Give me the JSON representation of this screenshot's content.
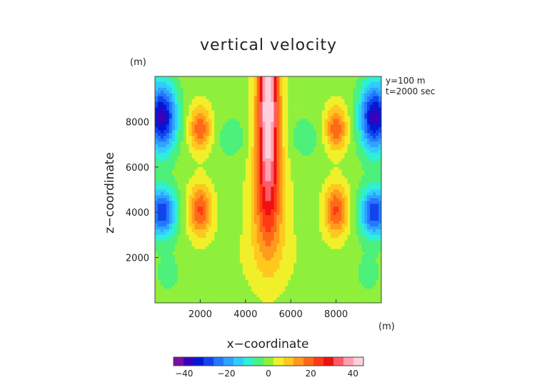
{
  "chart_data": {
    "type": "heatmap",
    "title": "vertical velocity",
    "xlabel": "x−coordinate",
    "ylabel": "z−coordinate",
    "x_unit": "(m)",
    "z_unit": "(m)",
    "info_lines": [
      "y=100  m",
      "t=2000 sec"
    ],
    "xlim": [
      0,
      10000
    ],
    "ylim": [
      0,
      10000
    ],
    "x_ticks": [
      {
        "value": 2000,
        "label": "2000"
      },
      {
        "value": 4000,
        "label": "4000"
      },
      {
        "value": 6000,
        "label": "6000"
      },
      {
        "value": 8000,
        "label": "8000"
      }
    ],
    "y_ticks": [
      {
        "value": 2000,
        "label": "2000"
      },
      {
        "value": 4000,
        "label": "4000"
      },
      {
        "value": 6000,
        "label": "6000"
      },
      {
        "value": 8000,
        "label": "8000"
      }
    ],
    "colorbar": {
      "range": [
        -45,
        45
      ],
      "ticks": [
        {
          "value": -40,
          "label": "−40"
        },
        {
          "value": -20,
          "label": "−20"
        },
        {
          "value": 0,
          "label": "0"
        },
        {
          "value": 20,
          "label": "20"
        },
        {
          "value": 40,
          "label": "40"
        }
      ],
      "colors": [
        "#7a0fa3",
        "#3a00b8",
        "#0019d6",
        "#1144ee",
        "#2477ff",
        "#2fa3ff",
        "#32cbff",
        "#2ef0d4",
        "#4df07a",
        "#8ff03c",
        "#f0f02a",
        "#ffc81e",
        "#ff9a1c",
        "#ff6a18",
        "#ff3a14",
        "#ee1111",
        "#ff5a6a",
        "#ffa0b0",
        "#ffd0dc"
      ]
    },
    "features": [
      {
        "x": 5000,
        "z": 8700,
        "sx": 340,
        "sz": 2800,
        "w": 46
      },
      {
        "x": 5000,
        "z": 4200,
        "sx": 560,
        "sz": 1900,
        "w": 16
      },
      {
        "x": 5000,
        "z": 1800,
        "sx": 1800,
        "sz": 1200,
        "w": 2
      },
      {
        "x": 2000,
        "z": 7700,
        "sx": 340,
        "sz": 700,
        "w": 20
      },
      {
        "x": 8000,
        "z": 7700,
        "sx": 340,
        "sz": 700,
        "w": 20
      },
      {
        "x": 2000,
        "z": 4100,
        "sx": 370,
        "sz": 800,
        "w": 22
      },
      {
        "x": 8000,
        "z": 4100,
        "sx": 370,
        "sz": 800,
        "w": 22
      },
      {
        "x": 300,
        "z": 8200,
        "sx": 450,
        "sz": 1050,
        "w": -38
      },
      {
        "x": 9700,
        "z": 8200,
        "sx": 450,
        "sz": 1050,
        "w": -38
      },
      {
        "x": 300,
        "z": 4000,
        "sx": 450,
        "sz": 750,
        "w": -30
      },
      {
        "x": 9700,
        "z": 4000,
        "sx": 450,
        "sz": 750,
        "w": -30
      },
      {
        "x": 3400,
        "z": 7300,
        "sx": 420,
        "sz": 600,
        "w": -6
      },
      {
        "x": 6600,
        "z": 7300,
        "sx": 420,
        "sz": 600,
        "w": -6
      },
      {
        "x": 600,
        "z": 1300,
        "sx": 450,
        "sz": 700,
        "w": -4
      },
      {
        "x": 9400,
        "z": 1300,
        "sx": 450,
        "sz": 700,
        "w": -4
      }
    ]
  }
}
